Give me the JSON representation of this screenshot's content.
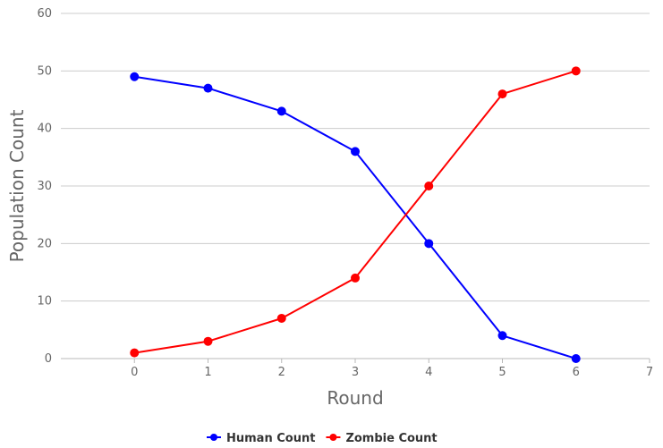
{
  "chart_data": {
    "type": "line",
    "xlabel": "Round",
    "ylabel": "Population Count",
    "xlim": [
      -1,
      7
    ],
    "ylim": [
      0,
      60
    ],
    "x_ticks": [
      0,
      1,
      2,
      3,
      4,
      5,
      6,
      7
    ],
    "y_ticks": [
      0,
      10,
      20,
      30,
      40,
      50,
      60
    ],
    "grid": "horizontal",
    "legend_position": "bottom",
    "series": [
      {
        "name": "Human Count",
        "color": "#0000ff",
        "x": [
          0,
          1,
          2,
          3,
          4,
          5,
          6
        ],
        "values": [
          49,
          47,
          43,
          36,
          20,
          4,
          0
        ]
      },
      {
        "name": "Zombie Count",
        "color": "#ff0000",
        "x": [
          0,
          1,
          2,
          3,
          4,
          5,
          6
        ],
        "values": [
          1,
          3,
          7,
          14,
          30,
          46,
          50
        ]
      }
    ]
  }
}
